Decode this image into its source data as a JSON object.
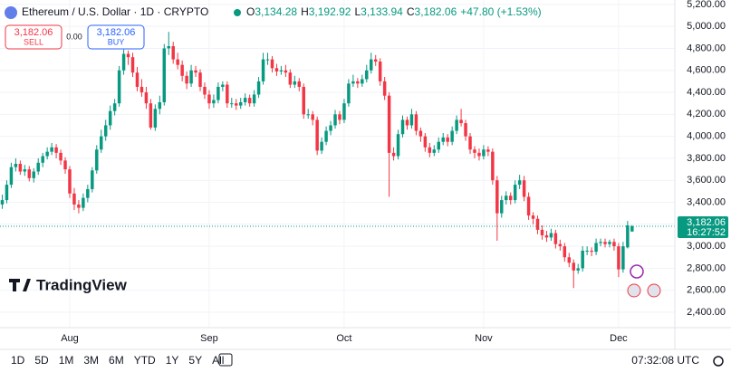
{
  "header": {
    "symbol": "Ethereum / U.S. Dollar · 1D · CRYPTO",
    "o_label": "O",
    "o": "3,134.28",
    "h_label": "H",
    "h": "3,192.92",
    "l_label": "L",
    "l": "3,133.94",
    "c_label": "C",
    "c": "3,182.06",
    "change": "+47.80 (+1.53%)"
  },
  "trade": {
    "sell_price": "3,182.06",
    "sell": "SELL",
    "spread": "0.00",
    "buy_price": "3,182.06",
    "buy": "BUY"
  },
  "branding": "TradingView",
  "toolbar": {
    "ranges": [
      "1D",
      "5D",
      "1M",
      "3M",
      "6M",
      "YTD",
      "1Y",
      "5Y",
      "All"
    ],
    "time": "07:32:08 UTC"
  },
  "chart_data": {
    "type": "candlestick",
    "up_color": "#089981",
    "down_color": "#f23645",
    "grid": true,
    "ylim": [
      2260,
      5240
    ],
    "yticks": [
      {
        "value": 2400,
        "label": "2,400.00"
      },
      {
        "value": 2600,
        "label": "2,600.00"
      },
      {
        "value": 2800,
        "label": "2,800.00"
      },
      {
        "value": 3000,
        "label": "3,000.00"
      },
      {
        "value": 3200,
        "label": "3,200.00"
      },
      {
        "value": 3400,
        "label": "3,400.00"
      },
      {
        "value": 3600,
        "label": "3,600.00"
      },
      {
        "value": 3800,
        "label": "3,800.00"
      },
      {
        "value": 4000,
        "label": "4,000.00"
      },
      {
        "value": 4200,
        "label": "4,200.00"
      },
      {
        "value": 4400,
        "label": "4,400.00"
      },
      {
        "value": 4600,
        "label": "4,600.00"
      },
      {
        "value": 4800,
        "label": "4,800.00"
      },
      {
        "value": 5000,
        "label": "5,000.00"
      },
      {
        "value": 5200,
        "label": "5,200.00"
      }
    ],
    "xlim": [
      -0.5,
      149.5
    ],
    "xticks": [
      {
        "value": 15,
        "label": "Aug"
      },
      {
        "value": 46,
        "label": "Sep"
      },
      {
        "value": 76,
        "label": "Oct"
      },
      {
        "value": 107,
        "label": "Nov"
      },
      {
        "value": 137,
        "label": "Dec"
      }
    ],
    "last_price": {
      "label": "3,182.06",
      "countdown": "16:27:52"
    },
    "candles": [
      [
        3380,
        3470,
        3340,
        3420
      ],
      [
        3420,
        3600,
        3390,
        3560
      ],
      [
        3560,
        3760,
        3530,
        3720
      ],
      [
        3720,
        3800,
        3680,
        3750
      ],
      [
        3750,
        3780,
        3650,
        3680
      ],
      [
        3680,
        3740,
        3640,
        3700
      ],
      [
        3700,
        3730,
        3590,
        3620
      ],
      [
        3620,
        3710,
        3580,
        3680
      ],
      [
        3680,
        3800,
        3650,
        3760
      ],
      [
        3760,
        3850,
        3720,
        3820
      ],
      [
        3820,
        3900,
        3790,
        3860
      ],
      [
        3860,
        3940,
        3830,
        3900
      ],
      [
        3900,
        3930,
        3800,
        3850
      ],
      [
        3850,
        3880,
        3740,
        3780
      ],
      [
        3780,
        3810,
        3660,
        3700
      ],
      [
        3700,
        3730,
        3440,
        3480
      ],
      [
        3480,
        3530,
        3330,
        3380
      ],
      [
        3380,
        3420,
        3300,
        3350
      ],
      [
        3350,
        3480,
        3320,
        3440
      ],
      [
        3440,
        3560,
        3400,
        3520
      ],
      [
        3520,
        3720,
        3490,
        3690
      ],
      [
        3690,
        3920,
        3660,
        3880
      ],
      [
        3880,
        4060,
        3850,
        4000
      ],
      [
        4000,
        4150,
        3960,
        4100
      ],
      [
        4100,
        4280,
        4060,
        4230
      ],
      [
        4230,
        4340,
        4190,
        4300
      ],
      [
        4300,
        4640,
        4270,
        4600
      ],
      [
        4600,
        4790,
        4560,
        4750
      ],
      [
        4750,
        4780,
        4650,
        4720
      ],
      [
        4720,
        4760,
        4540,
        4580
      ],
      [
        4580,
        4630,
        4410,
        4450
      ],
      [
        4450,
        4520,
        4360,
        4400
      ],
      [
        4400,
        4450,
        4250,
        4300
      ],
      [
        4300,
        4340,
        4060,
        4080
      ],
      [
        4080,
        4290,
        4050,
        4250
      ],
      [
        4250,
        4370,
        4200,
        4310
      ],
      [
        4310,
        4840,
        4280,
        4800
      ],
      [
        4800,
        4950,
        4740,
        4820
      ],
      [
        4820,
        4860,
        4660,
        4700
      ],
      [
        4700,
        4760,
        4610,
        4650
      ],
      [
        4650,
        4690,
        4500,
        4550
      ],
      [
        4550,
        4590,
        4430,
        4480
      ],
      [
        4480,
        4650,
        4450,
        4600
      ],
      [
        4600,
        4640,
        4540,
        4580
      ],
      [
        4580,
        4610,
        4410,
        4450
      ],
      [
        4450,
        4490,
        4340,
        4380
      ],
      [
        4380,
        4420,
        4250,
        4300
      ],
      [
        4300,
        4380,
        4260,
        4330
      ],
      [
        4330,
        4490,
        4300,
        4450
      ],
      [
        4450,
        4500,
        4410,
        4470
      ],
      [
        4470,
        4500,
        4260,
        4300
      ],
      [
        4300,
        4350,
        4260,
        4300
      ],
      [
        4300,
        4340,
        4240,
        4280
      ],
      [
        4280,
        4350,
        4250,
        4310
      ],
      [
        4310,
        4390,
        4280,
        4350
      ],
      [
        4350,
        4380,
        4270,
        4300
      ],
      [
        4300,
        4420,
        4270,
        4380
      ],
      [
        4380,
        4540,
        4350,
        4500
      ],
      [
        4500,
        4760,
        4470,
        4700
      ],
      [
        4700,
        4760,
        4650,
        4700
      ],
      [
        4700,
        4730,
        4580,
        4620
      ],
      [
        4620,
        4660,
        4550,
        4590
      ],
      [
        4590,
        4640,
        4560,
        4600
      ],
      [
        4600,
        4650,
        4540,
        4580
      ],
      [
        4580,
        4610,
        4440,
        4470
      ],
      [
        4470,
        4550,
        4440,
        4500
      ],
      [
        4500,
        4530,
        4410,
        4450
      ],
      [
        4450,
        4480,
        4160,
        4200
      ],
      [
        4200,
        4250,
        4160,
        4200
      ],
      [
        4200,
        4230,
        4100,
        4150
      ],
      [
        4150,
        4180,
        3830,
        3870
      ],
      [
        3870,
        3990,
        3840,
        3950
      ],
      [
        3950,
        4090,
        3920,
        4050
      ],
      [
        4050,
        4140,
        4010,
        4100
      ],
      [
        4100,
        4240,
        4070,
        4200
      ],
      [
        4200,
        4230,
        4110,
        4150
      ],
      [
        4150,
        4340,
        4120,
        4300
      ],
      [
        4300,
        4520,
        4270,
        4480
      ],
      [
        4480,
        4560,
        4450,
        4500
      ],
      [
        4500,
        4530,
        4440,
        4480
      ],
      [
        4480,
        4560,
        4450,
        4520
      ],
      [
        4520,
        4650,
        4490,
        4600
      ],
      [
        4600,
        4760,
        4570,
        4700
      ],
      [
        4700,
        4740,
        4640,
        4680
      ],
      [
        4680,
        4710,
        4460,
        4500
      ],
      [
        4500,
        4540,
        4330,
        4370
      ],
      [
        4370,
        4400,
        3450,
        3850
      ],
      [
        3850,
        3900,
        3780,
        3820
      ],
      [
        3820,
        4060,
        3790,
        4020
      ],
      [
        4020,
        4190,
        3990,
        4150
      ],
      [
        4150,
        4180,
        4060,
        4100
      ],
      [
        4100,
        4250,
        4070,
        4200
      ],
      [
        4200,
        4230,
        4010,
        4050
      ],
      [
        4050,
        4080,
        3950,
        4000
      ],
      [
        4000,
        4030,
        3860,
        3900
      ],
      [
        3900,
        3940,
        3810,
        3850
      ],
      [
        3850,
        3920,
        3820,
        3880
      ],
      [
        3880,
        3990,
        3850,
        3950
      ],
      [
        3950,
        4030,
        3920,
        3990
      ],
      [
        3990,
        4020,
        3910,
        3950
      ],
      [
        3950,
        4090,
        3920,
        4050
      ],
      [
        4050,
        4190,
        4020,
        4150
      ],
      [
        4150,
        4250,
        4090,
        4120
      ],
      [
        4120,
        4150,
        3960,
        4000
      ],
      [
        4000,
        4030,
        3840,
        3880
      ],
      [
        3880,
        3910,
        3800,
        3850
      ],
      [
        3850,
        3890,
        3780,
        3820
      ],
      [
        3820,
        3920,
        3790,
        3880
      ],
      [
        3880,
        3910,
        3820,
        3860
      ],
      [
        3860,
        3890,
        3560,
        3600
      ],
      [
        3600,
        3640,
        3050,
        3300
      ],
      [
        3300,
        3460,
        3260,
        3420
      ],
      [
        3420,
        3500,
        3380,
        3460
      ],
      [
        3460,
        3490,
        3380,
        3420
      ],
      [
        3420,
        3600,
        3390,
        3560
      ],
      [
        3560,
        3650,
        3520,
        3600
      ],
      [
        3600,
        3640,
        3410,
        3450
      ],
      [
        3450,
        3490,
        3240,
        3280
      ],
      [
        3280,
        3310,
        3200,
        3250
      ],
      [
        3250,
        3280,
        3110,
        3150
      ],
      [
        3150,
        3190,
        3060,
        3100
      ],
      [
        3100,
        3140,
        3040,
        3080
      ],
      [
        3080,
        3160,
        3050,
        3120
      ],
      [
        3120,
        3150,
        2980,
        3020
      ],
      [
        3020,
        3060,
        2960,
        3000
      ],
      [
        3000,
        3030,
        2860,
        2900
      ],
      [
        2900,
        2940,
        2810,
        2850
      ],
      [
        2850,
        2880,
        2620,
        2780
      ],
      [
        2780,
        2840,
        2750,
        2800
      ],
      [
        2800,
        3000,
        2770,
        2960
      ],
      [
        2960,
        3000,
        2920,
        2960
      ],
      [
        2960,
        2990,
        2910,
        2950
      ],
      [
        2950,
        3070,
        2920,
        3030
      ],
      [
        3030,
        3070,
        3000,
        3040
      ],
      [
        3040,
        3070,
        2990,
        3020
      ],
      [
        3020,
        3060,
        2990,
        3040
      ],
      [
        3040,
        3070,
        2960,
        3000
      ],
      [
        3000,
        3030,
        2720,
        2790
      ],
      [
        2790,
        3040,
        2760,
        3000
      ],
      [
        2990,
        3230,
        2980,
        3190
      ],
      [
        3134.28,
        3192.92,
        3133.94,
        3182.06
      ]
    ]
  }
}
